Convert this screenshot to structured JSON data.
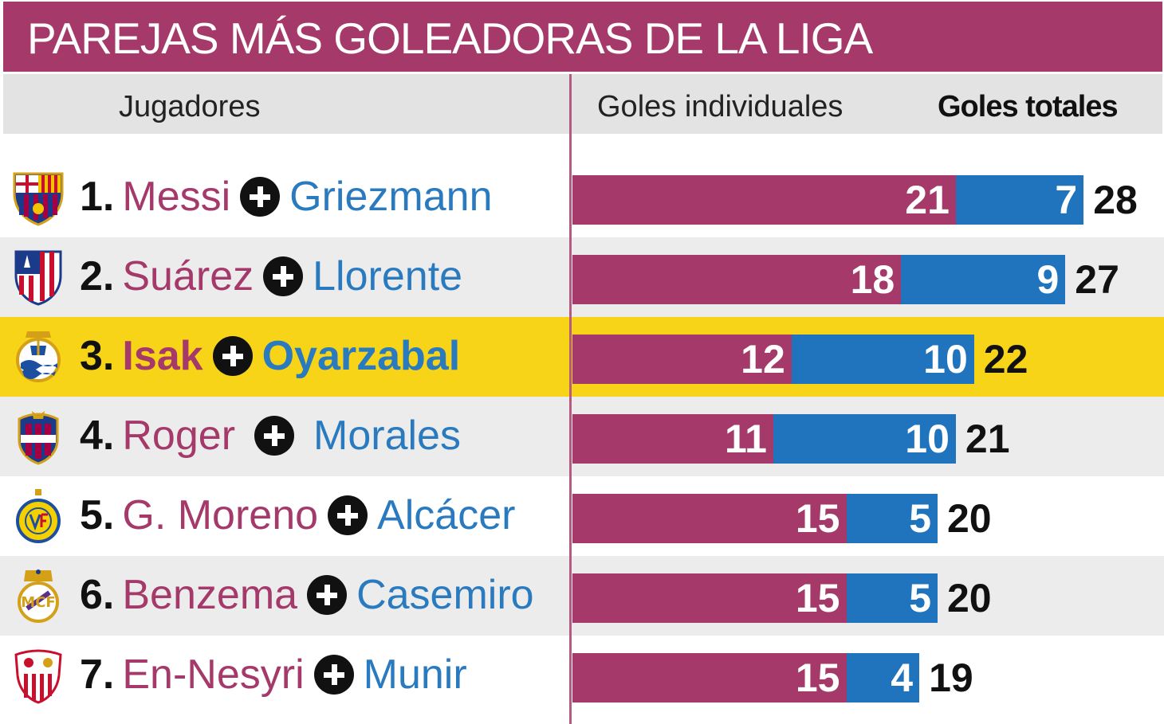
{
  "title": "PAREJAS MÁS GOLEADORAS DE LA LIGA",
  "headers": {
    "players": "Jugadores",
    "individual": "Goles individuales",
    "total": "Goles totales"
  },
  "colors": {
    "player1": "#a4396a",
    "player2": "#1f74bd",
    "highlight": "#f7d417"
  },
  "rows": [
    {
      "rank": "1.",
      "player1": "Messi",
      "player2": "Griezmann",
      "goals1": "21",
      "goals2": "7",
      "total": "28",
      "crest": "barcelona-crest-icon"
    },
    {
      "rank": "2.",
      "player1": "Suárez",
      "player2": "Llorente",
      "goals1": "18",
      "goals2": "9",
      "total": "27",
      "crest": "atletico-crest-icon"
    },
    {
      "rank": "3.",
      "player1": "Isak",
      "player2": "Oyarzabal",
      "goals1": "12",
      "goals2": "10",
      "total": "22",
      "crest": "real-sociedad-crest-icon"
    },
    {
      "rank": "4.",
      "player1": "Roger",
      "player2": "Morales",
      "goals1": "11",
      "goals2": "10",
      "total": "21",
      "crest": "levante-crest-icon"
    },
    {
      "rank": "5.",
      "player1": "G. Moreno",
      "player2": "Alcácer",
      "goals1": "15",
      "goals2": "5",
      "total": "20",
      "crest": "villarreal-crest-icon"
    },
    {
      "rank": "6.",
      "player1": "Benzema",
      "player2": "Casemiro",
      "goals1": "15",
      "goals2": "5",
      "total": "20",
      "crest": "real-madrid-crest-icon"
    },
    {
      "rank": "7.",
      "player1": "En-Nesyri",
      "player2": "Munir",
      "goals1": "15",
      "goals2": "4",
      "total": "19",
      "crest": "sevilla-crest-icon"
    }
  ],
  "chart_data": {
    "type": "bar",
    "title": "PAREJAS MÁS GOLEADORAS DE LA LIGA",
    "categories": [
      "Messi + Griezmann",
      "Suárez + Llorente",
      "Isak + Oyarzabal",
      "Roger + Morales",
      "G. Moreno + Alcácer",
      "Benzema + Casemiro",
      "En-Nesyri + Munir"
    ],
    "series": [
      {
        "values": [
          21,
          18,
          12,
          11,
          15,
          15,
          15
        ]
      },
      {
        "values": [
          7,
          9,
          10,
          10,
          5,
          5,
          4
        ]
      }
    ],
    "totals": [
      28,
      27,
      22,
      21,
      20,
      20,
      19
    ],
    "stacked": true,
    "orientation": "horizontal",
    "highlight_category": "Isak + Oyarzabal"
  }
}
